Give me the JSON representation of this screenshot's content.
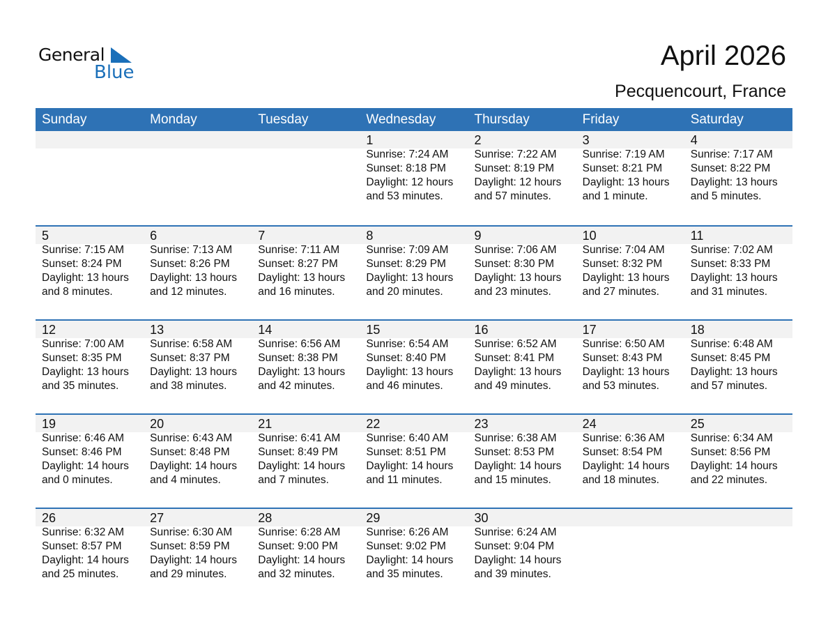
{
  "logo": {
    "line1": "General",
    "line2": "Blue",
    "accent": "#1a6fb9"
  },
  "title": "April 2026",
  "location": "Pecquencourt, France",
  "header_color": "#2e72b5",
  "weekdays": [
    "Sunday",
    "Monday",
    "Tuesday",
    "Wednesday",
    "Thursday",
    "Friday",
    "Saturday"
  ],
  "weeks": [
    [
      null,
      null,
      null,
      {
        "day": "1",
        "sunrise": "Sunrise: 7:24 AM",
        "sunset": "Sunset: 8:18 PM",
        "daylight": "Daylight: 12 hours",
        "minutes": "and 53 minutes."
      },
      {
        "day": "2",
        "sunrise": "Sunrise: 7:22 AM",
        "sunset": "Sunset: 8:19 PM",
        "daylight": "Daylight: 12 hours",
        "minutes": "and 57 minutes."
      },
      {
        "day": "3",
        "sunrise": "Sunrise: 7:19 AM",
        "sunset": "Sunset: 8:21 PM",
        "daylight": "Daylight: 13 hours",
        "minutes": "and 1 minute."
      },
      {
        "day": "4",
        "sunrise": "Sunrise: 7:17 AM",
        "sunset": "Sunset: 8:22 PM",
        "daylight": "Daylight: 13 hours",
        "minutes": "and 5 minutes."
      }
    ],
    [
      {
        "day": "5",
        "sunrise": "Sunrise: 7:15 AM",
        "sunset": "Sunset: 8:24 PM",
        "daylight": "Daylight: 13 hours",
        "minutes": "and 8 minutes."
      },
      {
        "day": "6",
        "sunrise": "Sunrise: 7:13 AM",
        "sunset": "Sunset: 8:26 PM",
        "daylight": "Daylight: 13 hours",
        "minutes": "and 12 minutes."
      },
      {
        "day": "7",
        "sunrise": "Sunrise: 7:11 AM",
        "sunset": "Sunset: 8:27 PM",
        "daylight": "Daylight: 13 hours",
        "minutes": "and 16 minutes."
      },
      {
        "day": "8",
        "sunrise": "Sunrise: 7:09 AM",
        "sunset": "Sunset: 8:29 PM",
        "daylight": "Daylight: 13 hours",
        "minutes": "and 20 minutes."
      },
      {
        "day": "9",
        "sunrise": "Sunrise: 7:06 AM",
        "sunset": "Sunset: 8:30 PM",
        "daylight": "Daylight: 13 hours",
        "minutes": "and 23 minutes."
      },
      {
        "day": "10",
        "sunrise": "Sunrise: 7:04 AM",
        "sunset": "Sunset: 8:32 PM",
        "daylight": "Daylight: 13 hours",
        "minutes": "and 27 minutes."
      },
      {
        "day": "11",
        "sunrise": "Sunrise: 7:02 AM",
        "sunset": "Sunset: 8:33 PM",
        "daylight": "Daylight: 13 hours",
        "minutes": "and 31 minutes."
      }
    ],
    [
      {
        "day": "12",
        "sunrise": "Sunrise: 7:00 AM",
        "sunset": "Sunset: 8:35 PM",
        "daylight": "Daylight: 13 hours",
        "minutes": "and 35 minutes."
      },
      {
        "day": "13",
        "sunrise": "Sunrise: 6:58 AM",
        "sunset": "Sunset: 8:37 PM",
        "daylight": "Daylight: 13 hours",
        "minutes": "and 38 minutes."
      },
      {
        "day": "14",
        "sunrise": "Sunrise: 6:56 AM",
        "sunset": "Sunset: 8:38 PM",
        "daylight": "Daylight: 13 hours",
        "minutes": "and 42 minutes."
      },
      {
        "day": "15",
        "sunrise": "Sunrise: 6:54 AM",
        "sunset": "Sunset: 8:40 PM",
        "daylight": "Daylight: 13 hours",
        "minutes": "and 46 minutes."
      },
      {
        "day": "16",
        "sunrise": "Sunrise: 6:52 AM",
        "sunset": "Sunset: 8:41 PM",
        "daylight": "Daylight: 13 hours",
        "minutes": "and 49 minutes."
      },
      {
        "day": "17",
        "sunrise": "Sunrise: 6:50 AM",
        "sunset": "Sunset: 8:43 PM",
        "daylight": "Daylight: 13 hours",
        "minutes": "and 53 minutes."
      },
      {
        "day": "18",
        "sunrise": "Sunrise: 6:48 AM",
        "sunset": "Sunset: 8:45 PM",
        "daylight": "Daylight: 13 hours",
        "minutes": "and 57 minutes."
      }
    ],
    [
      {
        "day": "19",
        "sunrise": "Sunrise: 6:46 AM",
        "sunset": "Sunset: 8:46 PM",
        "daylight": "Daylight: 14 hours",
        "minutes": "and 0 minutes."
      },
      {
        "day": "20",
        "sunrise": "Sunrise: 6:43 AM",
        "sunset": "Sunset: 8:48 PM",
        "daylight": "Daylight: 14 hours",
        "minutes": "and 4 minutes."
      },
      {
        "day": "21",
        "sunrise": "Sunrise: 6:41 AM",
        "sunset": "Sunset: 8:49 PM",
        "daylight": "Daylight: 14 hours",
        "minutes": "and 7 minutes."
      },
      {
        "day": "22",
        "sunrise": "Sunrise: 6:40 AM",
        "sunset": "Sunset: 8:51 PM",
        "daylight": "Daylight: 14 hours",
        "minutes": "and 11 minutes."
      },
      {
        "day": "23",
        "sunrise": "Sunrise: 6:38 AM",
        "sunset": "Sunset: 8:53 PM",
        "daylight": "Daylight: 14 hours",
        "minutes": "and 15 minutes."
      },
      {
        "day": "24",
        "sunrise": "Sunrise: 6:36 AM",
        "sunset": "Sunset: 8:54 PM",
        "daylight": "Daylight: 14 hours",
        "minutes": "and 18 minutes."
      },
      {
        "day": "25",
        "sunrise": "Sunrise: 6:34 AM",
        "sunset": "Sunset: 8:56 PM",
        "daylight": "Daylight: 14 hours",
        "minutes": "and 22 minutes."
      }
    ],
    [
      {
        "day": "26",
        "sunrise": "Sunrise: 6:32 AM",
        "sunset": "Sunset: 8:57 PM",
        "daylight": "Daylight: 14 hours",
        "minutes": "and 25 minutes."
      },
      {
        "day": "27",
        "sunrise": "Sunrise: 6:30 AM",
        "sunset": "Sunset: 8:59 PM",
        "daylight": "Daylight: 14 hours",
        "minutes": "and 29 minutes."
      },
      {
        "day": "28",
        "sunrise": "Sunrise: 6:28 AM",
        "sunset": "Sunset: 9:00 PM",
        "daylight": "Daylight: 14 hours",
        "minutes": "and 32 minutes."
      },
      {
        "day": "29",
        "sunrise": "Sunrise: 6:26 AM",
        "sunset": "Sunset: 9:02 PM",
        "daylight": "Daylight: 14 hours",
        "minutes": "and 35 minutes."
      },
      {
        "day": "30",
        "sunrise": "Sunrise: 6:24 AM",
        "sunset": "Sunset: 9:04 PM",
        "daylight": "Daylight: 14 hours",
        "minutes": "and 39 minutes."
      },
      null,
      null
    ]
  ]
}
